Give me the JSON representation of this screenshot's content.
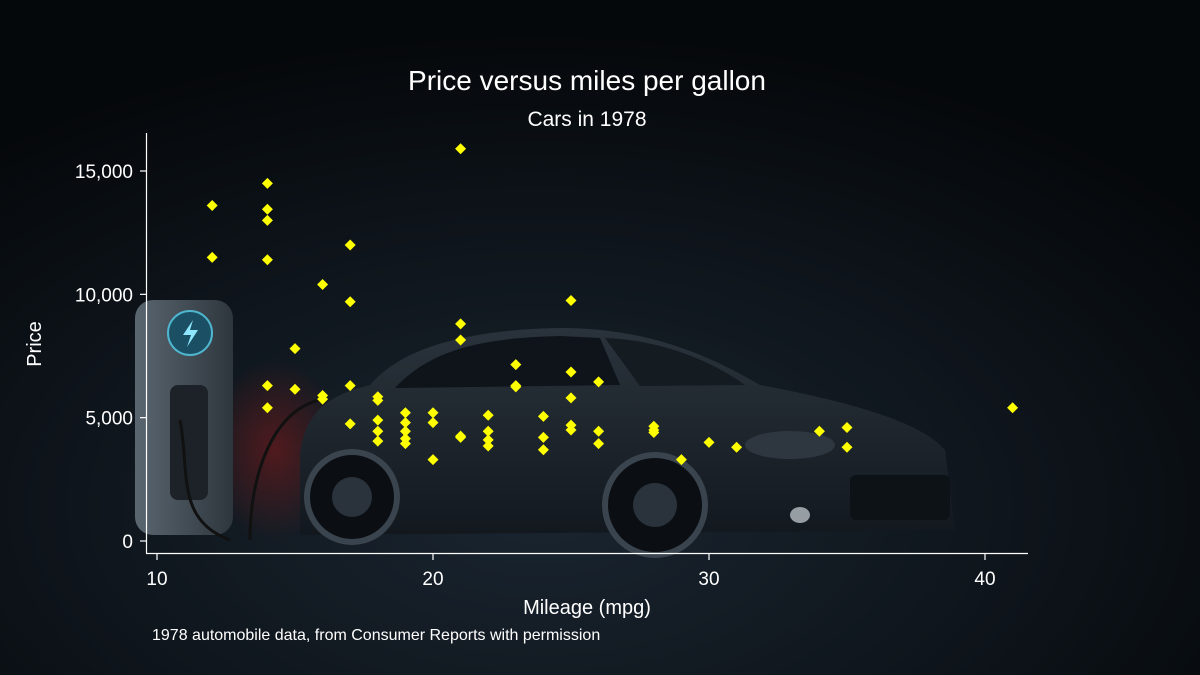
{
  "chart_data": {
    "type": "scatter",
    "title": "Price versus miles per gallon",
    "subtitle": "Cars in 1978",
    "xlabel": "Mileage (mpg)",
    "ylabel": "Price",
    "note": "1978 automobile data, from Consumer Reports with permission",
    "xlim": [
      10,
      41
    ],
    "ylim": [
      0,
      16000
    ],
    "xticks": [
      10,
      20,
      30,
      40
    ],
    "xtick_labels": [
      "10",
      "20",
      "30",
      "40"
    ],
    "yticks": [
      0,
      5000,
      10000,
      15000
    ],
    "ytick_labels": [
      "0",
      "5,000",
      "10,000",
      "15,000"
    ],
    "marker": "diamond",
    "marker_color": "#ffff00",
    "grid": false,
    "points": [
      {
        "x": 12,
        "y": 13600
      },
      {
        "x": 12,
        "y": 11500
      },
      {
        "x": 14,
        "y": 14500
      },
      {
        "x": 14,
        "y": 13450
      },
      {
        "x": 14,
        "y": 13000
      },
      {
        "x": 14,
        "y": 11400
      },
      {
        "x": 14,
        "y": 6300
      },
      {
        "x": 14,
        "y": 5400
      },
      {
        "x": 15,
        "y": 7800
      },
      {
        "x": 15,
        "y": 6150
      },
      {
        "x": 16,
        "y": 10400
      },
      {
        "x": 16,
        "y": 5900
      },
      {
        "x": 16,
        "y": 5750
      },
      {
        "x": 17,
        "y": 12000
      },
      {
        "x": 17,
        "y": 9700
      },
      {
        "x": 17,
        "y": 6300
      },
      {
        "x": 17,
        "y": 4750
      },
      {
        "x": 18,
        "y": 5850
      },
      {
        "x": 18,
        "y": 5700
      },
      {
        "x": 18,
        "y": 4900
      },
      {
        "x": 18,
        "y": 4450
      },
      {
        "x": 18,
        "y": 4050
      },
      {
        "x": 19,
        "y": 5200
      },
      {
        "x": 19,
        "y": 4800
      },
      {
        "x": 19,
        "y": 4450
      },
      {
        "x": 19,
        "y": 4150
      },
      {
        "x": 19,
        "y": 3950
      },
      {
        "x": 20,
        "y": 5200
      },
      {
        "x": 20,
        "y": 4800
      },
      {
        "x": 20,
        "y": 3300
      },
      {
        "x": 21,
        "y": 15900
      },
      {
        "x": 21,
        "y": 8800
      },
      {
        "x": 21,
        "y": 8150
      },
      {
        "x": 21,
        "y": 4250
      },
      {
        "x": 21,
        "y": 4200
      },
      {
        "x": 22,
        "y": 5100
      },
      {
        "x": 22,
        "y": 4450
      },
      {
        "x": 22,
        "y": 4100
      },
      {
        "x": 22,
        "y": 3850
      },
      {
        "x": 23,
        "y": 7150
      },
      {
        "x": 23,
        "y": 6300
      },
      {
        "x": 23,
        "y": 6250
      },
      {
        "x": 24,
        "y": 5050
      },
      {
        "x": 24,
        "y": 4200
      },
      {
        "x": 24,
        "y": 3700
      },
      {
        "x": 25,
        "y": 9750
      },
      {
        "x": 25,
        "y": 6850
      },
      {
        "x": 25,
        "y": 5800
      },
      {
        "x": 25,
        "y": 4700
      },
      {
        "x": 25,
        "y": 4500
      },
      {
        "x": 26,
        "y": 6450
      },
      {
        "x": 26,
        "y": 4450
      },
      {
        "x": 26,
        "y": 3950
      },
      {
        "x": 28,
        "y": 4650
      },
      {
        "x": 28,
        "y": 4500
      },
      {
        "x": 28,
        "y": 4400
      },
      {
        "x": 29,
        "y": 3300
      },
      {
        "x": 30,
        "y": 4000
      },
      {
        "x": 31,
        "y": 3800
      },
      {
        "x": 34,
        "y": 4450
      },
      {
        "x": 35,
        "y": 4600
      },
      {
        "x": 35,
        "y": 3800
      },
      {
        "x": 41,
        "y": 5400
      }
    ]
  }
}
